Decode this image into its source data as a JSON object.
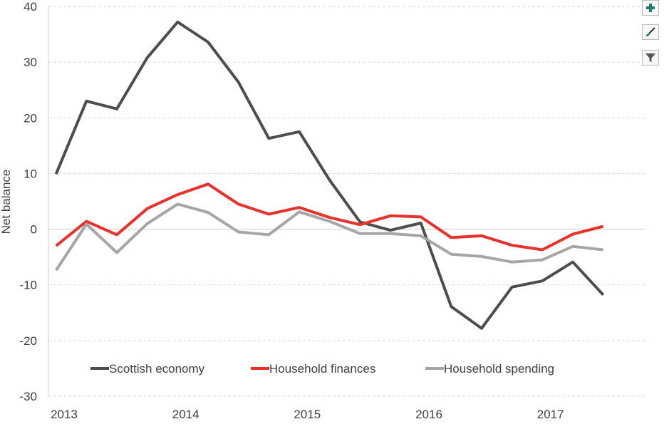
{
  "chart_data": {
    "type": "line",
    "title": "",
    "xlabel": "",
    "ylabel": "Net balance",
    "ylim": [
      -30,
      40
    ],
    "yticks": [
      40,
      30,
      20,
      10,
      0,
      -10,
      -20,
      -30
    ],
    "xlim": [
      2013,
      2017.875
    ],
    "xticks": [
      "2013",
      "2014",
      "2015",
      "2016",
      "2017"
    ],
    "grid": "horizontal-dashed",
    "legend_position": "bottom-inside",
    "x": [
      2013.0,
      2013.25,
      2013.5,
      2013.75,
      2014.0,
      2014.25,
      2014.5,
      2014.75,
      2015.0,
      2015.25,
      2015.5,
      2015.75,
      2016.0,
      2016.25,
      2016.5,
      2016.75,
      2017.0,
      2017.25,
      2017.5,
      2017.75
    ],
    "series": [
      {
        "name": "Scottish economy",
        "color": "#4d4d4d",
        "values": [
          9.9,
          23.0,
          21.6,
          30.8,
          37.2,
          33.6,
          26.4,
          16.3,
          17.5,
          8.8,
          1.3,
          -0.2,
          1.1,
          -13.9,
          -17.8,
          -10.4,
          -9.3,
          -5.9,
          -11.8,
          null
        ]
      },
      {
        "name": "Household finances",
        "color": "#e8312a",
        "values": [
          -3.0,
          1.4,
          -1.0,
          3.7,
          6.2,
          8.1,
          4.5,
          2.7,
          3.9,
          2.1,
          0.8,
          2.4,
          2.2,
          -1.5,
          -1.2,
          -2.9,
          -3.7,
          -0.9,
          0.5,
          null
        ]
      },
      {
        "name": "Household spending",
        "color": "#a6a6a6",
        "values": [
          -7.4,
          0.9,
          -4.2,
          1.0,
          4.5,
          3.0,
          -0.5,
          -1.0,
          3.1,
          1.4,
          -0.8,
          -0.8,
          -1.2,
          -4.5,
          -4.9,
          -5.9,
          -5.5,
          -3.1,
          -3.7,
          null
        ]
      }
    ]
  },
  "toolbar": {
    "icons": [
      "plus-icon",
      "brush-icon",
      "filter-icon"
    ],
    "accent": "#1e7b6e"
  }
}
